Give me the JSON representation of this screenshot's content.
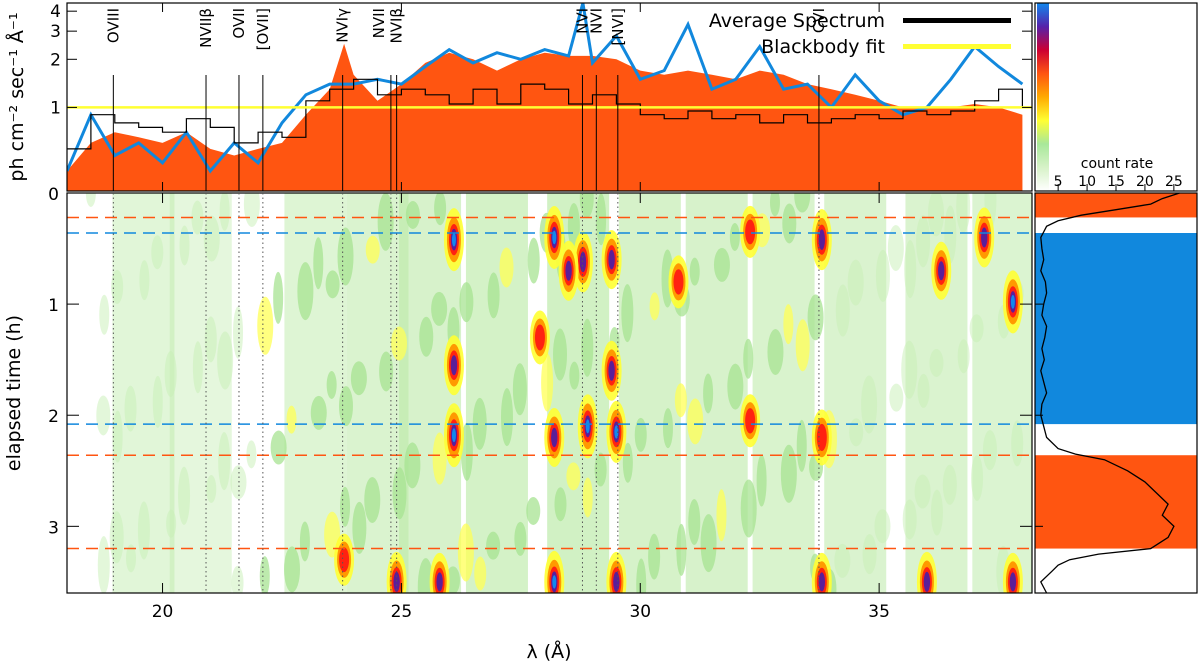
{
  "chart_data": [
    {
      "id": "spectrum",
      "type": "line",
      "ylabel": "ph cm⁻² sec⁻¹ Å⁻¹",
      "xlim": [
        18,
        38.2
      ],
      "ylim": [
        0.3,
        4.5
      ],
      "y_scale": "log",
      "y_ticks": [
        1,
        2,
        3,
        4
      ],
      "y_tick_labels": [
        "1",
        "2",
        "3",
        "4"
      ],
      "legend": [
        {
          "label": "Average Spectrum",
          "color": "#000000"
        },
        {
          "label": "Blackbody fit",
          "color": "#ffff33"
        }
      ],
      "series": [
        {
          "name": "Average Spectrum",
          "color": "#000000",
          "style": "step",
          "x": [
            18.0,
            18.5,
            19.0,
            19.5,
            20.0,
            20.5,
            21.0,
            21.5,
            22.0,
            22.5,
            23.0,
            23.5,
            24.0,
            24.5,
            25.0,
            25.5,
            26.0,
            26.5,
            27.0,
            27.5,
            28.0,
            28.5,
            29.0,
            29.5,
            30.0,
            30.5,
            31.0,
            31.5,
            32.0,
            32.5,
            33.0,
            33.5,
            34.0,
            34.5,
            35.0,
            35.5,
            36.0,
            36.5,
            37.0,
            37.5,
            38.0
          ],
          "y": [
            0.55,
            0.9,
            0.8,
            0.75,
            0.7,
            0.85,
            0.75,
            0.6,
            0.7,
            0.65,
            1.1,
            1.3,
            1.5,
            1.2,
            1.3,
            1.2,
            1.05,
            1.3,
            1.05,
            1.4,
            1.3,
            1.05,
            1.2,
            1.05,
            0.9,
            0.85,
            0.95,
            0.85,
            0.9,
            0.8,
            0.9,
            0.8,
            0.85,
            0.9,
            0.85,
            0.95,
            0.9,
            0.95,
            1.1,
            1.3,
            1.0
          ]
        },
        {
          "name": "Blackbody fit",
          "color": "#ffff33",
          "x": [
            18,
            38.2
          ],
          "y": [
            1.0,
            1.0
          ]
        },
        {
          "name": "Model (blue)",
          "color": "#1188dd",
          "x": [
            18.0,
            18.5,
            19.0,
            19.5,
            20.0,
            20.5,
            21.0,
            21.5,
            22.0,
            22.5,
            23.0,
            23.5,
            24.0,
            24.5,
            25.0,
            25.5,
            26.0,
            26.5,
            27.0,
            27.5,
            28.0,
            28.5,
            28.8,
            29.0,
            29.5,
            30.0,
            30.5,
            31.0,
            31.5,
            32.0,
            32.5,
            33.0,
            33.5,
            34.0,
            34.5,
            35.0,
            35.5,
            36.0,
            36.5,
            37.0,
            37.5,
            38.0
          ],
          "y": [
            0.4,
            0.9,
            0.5,
            0.6,
            0.45,
            0.7,
            0.4,
            0.6,
            0.45,
            0.8,
            1.2,
            1.4,
            1.4,
            1.5,
            1.4,
            1.8,
            2.3,
            1.9,
            2.2,
            2.0,
            2.3,
            2.1,
            4.5,
            1.9,
            2.8,
            1.5,
            1.7,
            3.3,
            1.3,
            1.5,
            2.4,
            1.3,
            1.4,
            1.0,
            1.6,
            1.1,
            0.9,
            1.0,
            1.5,
            2.4,
            1.8,
            1.4
          ]
        },
        {
          "name": "Model (orange fill)",
          "color": "#ff5511",
          "fill": true,
          "x": [
            18.0,
            18.5,
            19.0,
            19.5,
            20.0,
            20.5,
            21.0,
            21.5,
            22.0,
            22.5,
            23.0,
            23.5,
            23.8,
            24.0,
            24.5,
            25.0,
            25.5,
            26.0,
            26.5,
            27.0,
            27.5,
            28.0,
            28.5,
            29.0,
            29.5,
            30.0,
            30.5,
            31.0,
            31.5,
            32.0,
            32.5,
            33.0,
            33.5,
            34.0,
            34.5,
            35.0,
            35.5,
            36.0,
            36.5,
            37.0,
            37.5,
            38.0
          ],
          "y": [
            0.4,
            0.6,
            0.7,
            0.65,
            0.6,
            0.7,
            0.55,
            0.5,
            0.55,
            0.6,
            0.9,
            1.3,
            2.5,
            1.6,
            1.1,
            1.4,
            1.9,
            2.2,
            2.0,
            1.7,
            2.0,
            2.2,
            2.1,
            2.1,
            2.0,
            1.7,
            1.6,
            1.7,
            1.6,
            1.5,
            1.7,
            1.6,
            1.4,
            1.3,
            1.2,
            1.1,
            1.0,
            1.0,
            1.0,
            1.05,
            1.0,
            0.9
          ]
        }
      ],
      "line_ids": [
        {
          "label": "OVIII",
          "wavelength": 18.97
        },
        {
          "label": "NVIIβ",
          "wavelength": 20.91
        },
        {
          "label": "OVII",
          "wavelength": 21.6
        },
        {
          "label": "[OVII]",
          "wavelength": 22.1
        },
        {
          "label": "NVIγ",
          "wavelength": 23.77
        },
        {
          "label": "NVII",
          "wavelength": 24.78
        },
        {
          "label": "NVIβ",
          "wavelength": 24.9
        },
        {
          "label": "NVI",
          "wavelength": 28.79
        },
        {
          "label": "NVI",
          "wavelength": 29.08
        },
        {
          "label": "[NVI]",
          "wavelength": 29.53
        },
        {
          "label": "CVI",
          "wavelength": 33.74
        }
      ]
    },
    {
      "id": "dynamic_spectrum",
      "type": "heatmap",
      "xlabel": "λ (Å)",
      "ylabel": "elapsed time (h)",
      "xlim": [
        18,
        38.2
      ],
      "ylim": [
        3.6,
        0
      ],
      "x_ticks": [
        20,
        25,
        30,
        35
      ],
      "x_tick_labels": [
        "20",
        "25",
        "30",
        "35"
      ],
      "y_ticks": [
        0,
        1,
        2,
        3
      ],
      "y_tick_labels": [
        "0",
        "1",
        "2",
        "3"
      ],
      "interval_boundaries": [
        {
          "time": 0.22,
          "color": "#ff5511"
        },
        {
          "time": 0.36,
          "color": "#1188dd"
        },
        {
          "time": 2.08,
          "color": "#1188dd"
        },
        {
          "time": 2.36,
          "color": "#ff5511"
        },
        {
          "time": 3.2,
          "color": "#ff5511"
        }
      ],
      "hotspots": [
        {
          "x": 26.1,
          "t": 0.42,
          "strength": 0.95
        },
        {
          "x": 28.2,
          "t": 0.4,
          "strength": 0.95
        },
        {
          "x": 28.8,
          "t": 0.62,
          "strength": 0.85
        },
        {
          "x": 28.5,
          "t": 0.7,
          "strength": 0.8
        },
        {
          "x": 29.4,
          "t": 0.6,
          "strength": 0.75
        },
        {
          "x": 33.8,
          "t": 0.42,
          "strength": 0.85
        },
        {
          "x": 37.2,
          "t": 0.4,
          "strength": 0.8
        },
        {
          "x": 36.3,
          "t": 0.7,
          "strength": 0.7
        },
        {
          "x": 37.8,
          "t": 0.98,
          "strength": 0.95
        },
        {
          "x": 26.1,
          "t": 1.55,
          "strength": 0.8
        },
        {
          "x": 29.4,
          "t": 1.6,
          "strength": 0.8
        },
        {
          "x": 26.1,
          "t": 2.18,
          "strength": 1.0
        },
        {
          "x": 28.9,
          "t": 2.1,
          "strength": 1.0
        },
        {
          "x": 29.5,
          "t": 2.15,
          "strength": 0.9
        },
        {
          "x": 28.2,
          "t": 2.2,
          "strength": 0.75
        },
        {
          "x": 33.8,
          "t": 2.2,
          "strength": 0.6
        },
        {
          "x": 32.3,
          "t": 2.05,
          "strength": 0.45
        },
        {
          "x": 25.8,
          "t": 3.5,
          "strength": 0.7
        },
        {
          "x": 28.2,
          "t": 3.5,
          "strength": 0.9
        },
        {
          "x": 29.5,
          "t": 3.5,
          "strength": 0.8
        },
        {
          "x": 24.9,
          "t": 3.5,
          "strength": 0.8
        },
        {
          "x": 33.8,
          "t": 3.5,
          "strength": 0.7
        },
        {
          "x": 36.0,
          "t": 3.5,
          "strength": 0.8
        },
        {
          "x": 37.8,
          "t": 3.5,
          "strength": 0.7
        },
        {
          "x": 23.8,
          "t": 3.3,
          "strength": 0.4
        },
        {
          "x": 27.9,
          "t": 1.3,
          "strength": 0.5
        },
        {
          "x": 30.8,
          "t": 0.8,
          "strength": 0.45
        },
        {
          "x": 32.3,
          "t": 0.35,
          "strength": 0.4
        }
      ]
    },
    {
      "id": "light_curve",
      "type": "line",
      "xlabel": "count rate",
      "x_ticks": [
        5,
        10,
        15,
        20,
        25
      ],
      "x_tick_labels": [
        "5",
        "10",
        "15",
        "20",
        "25"
      ],
      "xlim": [
        1,
        29
      ],
      "ylim": [
        3.6,
        0
      ],
      "highlight_intervals": [
        {
          "start": 0.0,
          "end": 0.22,
          "color": "#ff5511"
        },
        {
          "start": 0.36,
          "end": 2.08,
          "color": "#1188dd"
        },
        {
          "start": 2.36,
          "end": 3.2,
          "color": "#ff5511"
        }
      ],
      "series": [
        {
          "name": "count rate",
          "t": [
            0.0,
            0.05,
            0.1,
            0.15,
            0.2,
            0.25,
            0.3,
            0.35,
            0.4,
            0.5,
            0.6,
            0.7,
            0.8,
            0.9,
            1.0,
            1.1,
            1.2,
            1.3,
            1.4,
            1.5,
            1.6,
            1.7,
            1.8,
            1.9,
            2.0,
            2.1,
            2.2,
            2.3,
            2.35,
            2.4,
            2.5,
            2.6,
            2.7,
            2.8,
            2.9,
            3.0,
            3.1,
            3.2,
            3.25,
            3.3,
            3.35,
            3.4,
            3.5,
            3.6
          ],
          "rate": [
            26,
            23,
            21,
            15,
            9,
            5,
            3,
            2.5,
            2,
            2.2,
            2.5,
            2,
            2.8,
            3,
            2.5,
            2.2,
            3,
            2.7,
            2.2,
            2.6,
            2,
            2.5,
            3,
            2.2,
            2,
            2.5,
            3,
            5,
            8,
            13,
            17,
            20,
            22,
            24,
            23,
            25,
            24,
            21,
            12,
            7,
            5,
            4,
            2,
            3
          ]
        }
      ]
    },
    {
      "id": "colorbar",
      "type": "colorbar",
      "colors": [
        "#ffffff",
        "#d7f2c8",
        "#a8e89a",
        "#ffff33",
        "#ffaa00",
        "#ff5511",
        "#cc0033",
        "#5522aa",
        "#1188ee"
      ]
    }
  ]
}
